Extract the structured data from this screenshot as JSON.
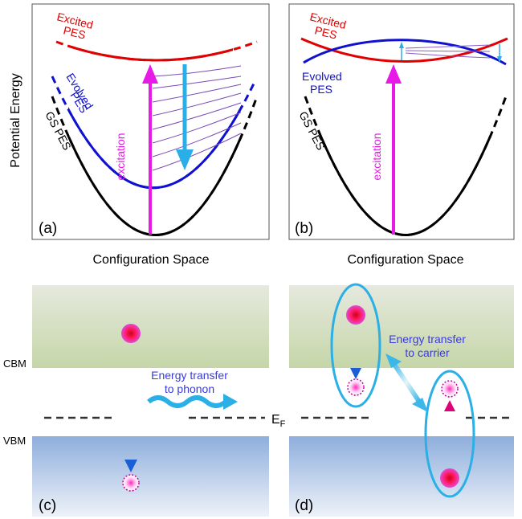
{
  "panel_a": {
    "label": "(a)",
    "y_axis_label": "Potential Energy",
    "x_axis_label": "Configuration Space",
    "excited_pes": [
      "Excited",
      "PES"
    ],
    "evolved_pes": [
      "Evolved",
      "PES"
    ],
    "gs_pes": "GS PES",
    "arrow_label": "excitation"
  },
  "panel_b": {
    "label": "(b)",
    "x_axis_label": "Configuration Space",
    "excited_pes": [
      "Excited",
      "PES"
    ],
    "evolved_pes": [
      "Evolved",
      "PES"
    ],
    "gs_pes": "GS PES",
    "arrow_label": "excitation"
  },
  "panel_c": {
    "label": "(c)",
    "cbm": "CBM",
    "vbm": "VBM",
    "transfer": [
      "Energy transfer",
      "to phonon"
    ]
  },
  "panel_d": {
    "label": "(d)",
    "fermi": {
      "main": "E",
      "sub": "F"
    },
    "transfer": [
      "Energy transfer",
      "to carrier"
    ]
  }
}
